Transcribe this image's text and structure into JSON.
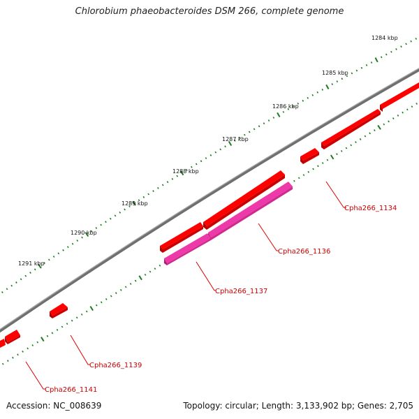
{
  "title": "Chlorobium phaeobacteroides DSM 266, complete genome",
  "footer": {
    "accession": "Accession: NC_008639",
    "stats": "Topology: circular; Length: 3,133,902 bp; Genes: 2,705"
  },
  "scale_labels": [
    "1284 kbp",
    "1285 kbp",
    "1286 kbp",
    "1287 kbp",
    "1288 kbp",
    "1289 kbp",
    "1290 kbp",
    "1291 kbp"
  ],
  "gene_labels": [
    "Cpha266_1134",
    "Cpha266_1136",
    "Cpha266_1137",
    "Cpha266_1139",
    "Cpha266_1141"
  ],
  "colors": {
    "backbone": "#7a7a7a",
    "gene": "#ff0000",
    "gene_dark": "#b00000",
    "gene_highlight": "#ee3aa8",
    "tick": "#1f7a1f",
    "label": "#cc0000"
  }
}
